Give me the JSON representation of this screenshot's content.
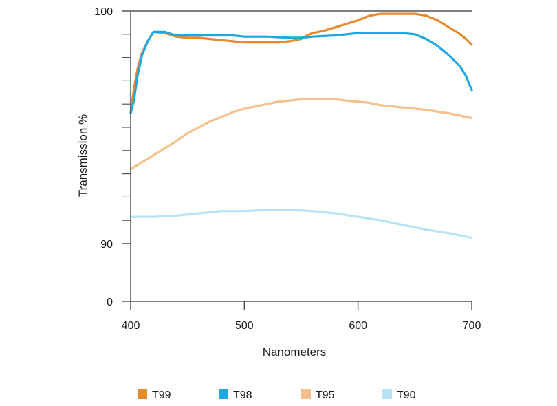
{
  "chart_data": {
    "type": "line",
    "title": "",
    "xlabel": "Nanometers",
    "ylabel": "Transmission %",
    "xlim": [
      400,
      700
    ],
    "x_ticks": [
      400,
      500,
      600,
      700
    ],
    "y_tick_labels": [
      {
        "value": 100,
        "label": "100"
      },
      {
        "value": 90,
        "label": "90"
      },
      {
        "value": 0,
        "label": "0"
      }
    ],
    "y_minor_ticks": [
      99,
      98,
      97,
      96,
      95,
      94,
      93,
      92,
      91
    ],
    "y_axis_note": "broken scale: 90-100 expanded, 0-90 compressed",
    "grid": false,
    "legend_position": "bottom",
    "series": [
      {
        "name": "T99",
        "color": "#e8892b",
        "x": [
          400,
          403,
          406,
          410,
          415,
          420,
          430,
          440,
          450,
          460,
          470,
          480,
          490,
          500,
          510,
          520,
          530,
          540,
          550,
          555,
          560,
          570,
          580,
          590,
          600,
          610,
          620,
          630,
          640,
          650,
          660,
          670,
          680,
          690,
          695,
          700
        ],
        "y": [
          95.7,
          96.7,
          97.5,
          98.2,
          98.7,
          99.1,
          99.05,
          98.9,
          98.85,
          98.85,
          98.8,
          98.75,
          98.7,
          98.65,
          98.65,
          98.65,
          98.65,
          98.7,
          98.8,
          98.95,
          99.05,
          99.15,
          99.3,
          99.45,
          99.6,
          99.8,
          99.88,
          99.88,
          99.88,
          99.88,
          99.8,
          99.6,
          99.3,
          99.0,
          98.8,
          98.55
        ]
      },
      {
        "name": "T98",
        "color": "#1ea7e0",
        "x": [
          400,
          403,
          406,
          410,
          415,
          420,
          430,
          440,
          450,
          470,
          490,
          500,
          520,
          540,
          550,
          560,
          580,
          600,
          620,
          640,
          650,
          660,
          670,
          680,
          690,
          695,
          700
        ],
        "y": [
          95.6,
          96.2,
          97.2,
          98.1,
          98.7,
          99.1,
          99.1,
          98.95,
          98.95,
          98.95,
          98.95,
          98.9,
          98.9,
          98.85,
          98.85,
          98.9,
          98.95,
          99.05,
          99.05,
          99.05,
          99.0,
          98.8,
          98.5,
          98.1,
          97.6,
          97.2,
          96.6
        ]
      },
      {
        "name": "T95",
        "color": "#f5c08c",
        "x": [
          400,
          410,
          420,
          430,
          440,
          450,
          460,
          470,
          480,
          490,
          500,
          510,
          520,
          530,
          540,
          550,
          560,
          570,
          580,
          590,
          600,
          610,
          620,
          640,
          660,
          680,
          700
        ],
        "y": [
          93.2,
          93.5,
          93.8,
          94.1,
          94.4,
          94.75,
          95.0,
          95.25,
          95.45,
          95.65,
          95.8,
          95.9,
          96.0,
          96.1,
          96.15,
          96.2,
          96.2,
          96.2,
          96.2,
          96.15,
          96.1,
          96.05,
          95.95,
          95.85,
          95.75,
          95.6,
          95.4
        ]
      },
      {
        "name": "T90",
        "color": "#b7e3f5",
        "x": [
          400,
          420,
          440,
          460,
          480,
          500,
          520,
          540,
          560,
          580,
          600,
          620,
          640,
          660,
          680,
          700
        ],
        "y": [
          91.15,
          91.15,
          91.2,
          91.3,
          91.4,
          91.4,
          91.45,
          91.45,
          91.4,
          91.3,
          91.15,
          91.0,
          90.8,
          90.6,
          90.45,
          90.25
        ]
      }
    ]
  }
}
